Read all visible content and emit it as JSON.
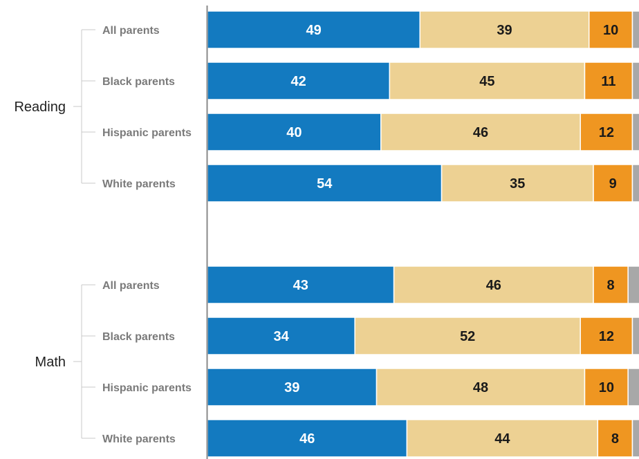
{
  "chart_data": {
    "type": "bar",
    "orientation": "horizontal",
    "stacked": true,
    "title": "",
    "xlabel": "",
    "ylabel": "",
    "legend": "none",
    "colors": [
      "#137ac0",
      "#edd193",
      "#ef9621",
      "#a8a8a8"
    ],
    "groups": [
      {
        "name": "Reading",
        "rows": [
          {
            "label": "All parents",
            "values": [
              49,
              39,
              10,
              2
            ]
          },
          {
            "label": "Black parents",
            "values": [
              42,
              45,
              11,
              2
            ]
          },
          {
            "label": "Hispanic parents",
            "values": [
              40,
              46,
              12,
              2
            ]
          },
          {
            "label": "White parents",
            "values": [
              54,
              35,
              9,
              2
            ]
          }
        ]
      },
      {
        "name": "Math",
        "rows": [
          {
            "label": "All parents",
            "values": [
              43,
              46,
              8,
              3
            ]
          },
          {
            "label": "Black parents",
            "values": [
              34,
              52,
              12,
              2
            ]
          },
          {
            "label": "Hispanic parents",
            "values": [
              39,
              48,
              10,
              3
            ]
          },
          {
            "label": "White parents",
            "values": [
              46,
              44,
              8,
              2
            ]
          }
        ]
      }
    ]
  }
}
